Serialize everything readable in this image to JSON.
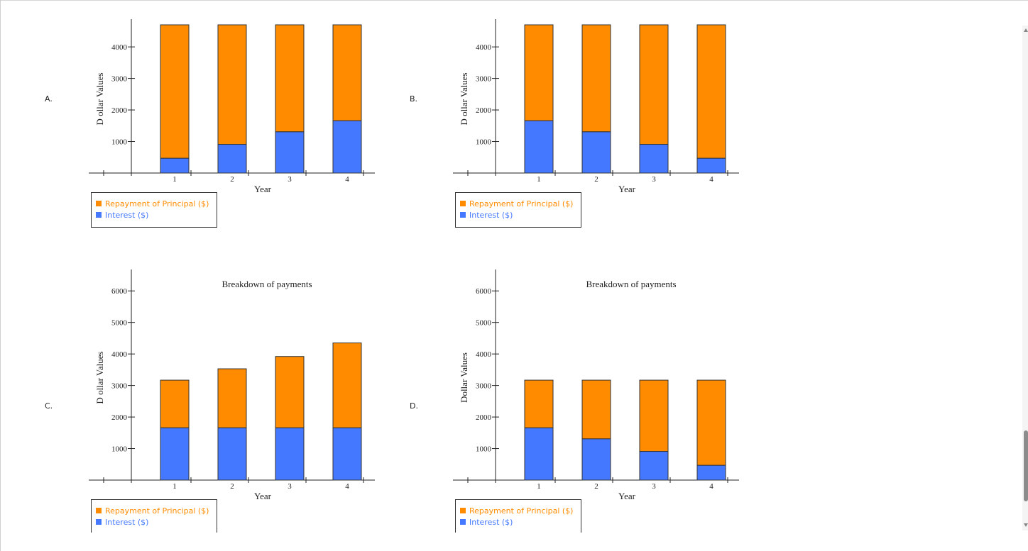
{
  "colors": {
    "principal": "#ff8c00",
    "interest": "#4479ff",
    "axis": "#222222"
  },
  "options": [
    {
      "letter": "A."
    },
    {
      "letter": "B."
    },
    {
      "letter": "C."
    },
    {
      "letter": "D."
    }
  ],
  "chart_data": [
    {
      "type": "bar",
      "stacked": true,
      "title": "",
      "xlabel": "Year",
      "ylabel": "D ollar Values",
      "categories": [
        "1",
        "2",
        "3",
        "4"
      ],
      "yticks": [
        1000,
        2000,
        3000,
        4000
      ],
      "ylim": [
        0,
        4700
      ],
      "series": [
        {
          "name": "Interest ($)",
          "values": [
            470,
            910,
            1310,
            1660
          ]
        },
        {
          "name": "Repayment of Principal ($)",
          "values": [
            4230,
            3790,
            3390,
            3040
          ]
        }
      ],
      "legend": "bottom-left",
      "grid": false
    },
    {
      "type": "bar",
      "stacked": true,
      "title": "",
      "xlabel": "Year",
      "ylabel": "D ollar Values",
      "categories": [
        "1",
        "2",
        "3",
        "4"
      ],
      "yticks": [
        1000,
        2000,
        3000,
        4000
      ],
      "ylim": [
        0,
        4700
      ],
      "series": [
        {
          "name": "Interest ($)",
          "values": [
            1660,
            1310,
            910,
            470
          ]
        },
        {
          "name": "Repayment of Principal ($)",
          "values": [
            3040,
            3390,
            3790,
            4230
          ]
        }
      ],
      "legend": "bottom-left",
      "grid": false
    },
    {
      "type": "bar",
      "stacked": true,
      "title": "Breakdown of payments",
      "xlabel": "Year",
      "ylabel": "D ollar Values",
      "categories": [
        "1",
        "2",
        "3",
        "4"
      ],
      "yticks": [
        1000,
        2000,
        3000,
        4000,
        5000,
        6000
      ],
      "ylim": [
        0,
        6500
      ],
      "series": [
        {
          "name": "Interest ($)",
          "values": [
            1660,
            1660,
            1660,
            1660
          ]
        },
        {
          "name": "Repayment of Principal ($)",
          "values": [
            1510,
            1870,
            2260,
            2690
          ]
        }
      ],
      "legend": "bottom-left",
      "grid": false
    },
    {
      "type": "bar",
      "stacked": true,
      "title": "Breakdown of payments",
      "xlabel": "Year",
      "ylabel": "Dollar Values",
      "categories": [
        "1",
        "2",
        "3",
        "4"
      ],
      "yticks": [
        1000,
        2000,
        3000,
        4000,
        5000,
        6000
      ],
      "ylim": [
        0,
        6500
      ],
      "series": [
        {
          "name": "Interest ($)",
          "values": [
            1660,
            1310,
            910,
            470
          ]
        },
        {
          "name": "Repayment of Principal ($)",
          "values": [
            1510,
            1860,
            2260,
            2700
          ]
        }
      ],
      "legend": "bottom-left",
      "grid": false
    }
  ]
}
